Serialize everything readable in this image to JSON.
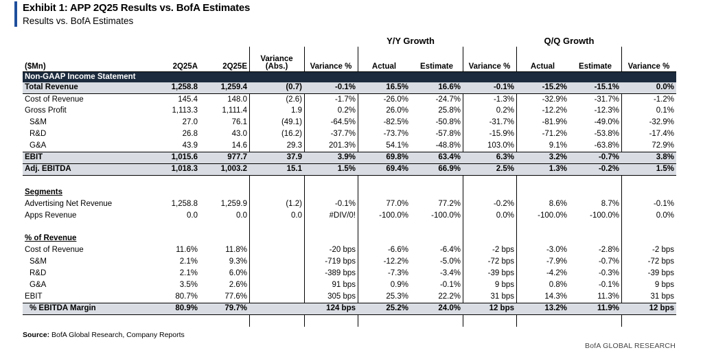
{
  "exhibit": {
    "title": "Exhibit 1: APP 2Q25 Results vs. BofA Estimates",
    "subtitle": "Results vs. BofA Estimates"
  },
  "groups": {
    "yy": "Y/Y Growth",
    "qq": "Q/Q Growth"
  },
  "columns": [
    "($Mn)",
    "2Q25A",
    "2Q25E",
    "Variance (Abs.)",
    "Variance %",
    "Actual",
    "Estimate",
    "Variance %",
    "Actual",
    "Estimate",
    "Variance %"
  ],
  "sections": {
    "income": "Non-GAAP Income Statement",
    "segments": "Segments",
    "pct_revenue": "% of Revenue"
  },
  "rows": [
    {
      "label": "Total Revenue",
      "cells": [
        "1,258.8",
        "1,259.4",
        "(0.7)",
        "-0.1%",
        "16.5%",
        "16.6%",
        "-0.1%",
        "-15.2%",
        "-15.1%",
        "0.0%"
      ]
    },
    {
      "label": "Cost of Revenue",
      "cells": [
        "145.4",
        "148.0",
        "(2.6)",
        "-1.7%",
        "-26.0%",
        "-24.7%",
        "-1.3%",
        "-32.9%",
        "-31.7%",
        "-1.2%"
      ]
    },
    {
      "label": "Gross Profit",
      "cells": [
        "1,113.3",
        "1,111.4",
        "1.9",
        "0.2%",
        "26.0%",
        "25.8%",
        "0.2%",
        "-12.2%",
        "-12.3%",
        "0.1%"
      ]
    },
    {
      "label": "S&M",
      "cells": [
        "27.0",
        "76.1",
        "(49.1)",
        "-64.5%",
        "-82.5%",
        "-50.8%",
        "-31.7%",
        "-81.9%",
        "-49.0%",
        "-32.9%"
      ]
    },
    {
      "label": "R&D",
      "cells": [
        "26.8",
        "43.0",
        "(16.2)",
        "-37.7%",
        "-73.7%",
        "-57.8%",
        "-15.9%",
        "-71.2%",
        "-53.8%",
        "-17.4%"
      ]
    },
    {
      "label": "G&A",
      "cells": [
        "43.9",
        "14.6",
        "29.3",
        "201.3%",
        "54.1%",
        "-48.8%",
        "103.0%",
        "9.1%",
        "-63.8%",
        "72.9%"
      ]
    },
    {
      "label": "EBIT",
      "cells": [
        "1,015.6",
        "977.7",
        "37.9",
        "3.9%",
        "69.8%",
        "63.4%",
        "6.3%",
        "3.2%",
        "-0.7%",
        "3.8%"
      ]
    },
    {
      "label": "Adj. EBITDA",
      "cells": [
        "1,018.3",
        "1,003.2",
        "15.1",
        "1.5%",
        "69.4%",
        "66.9%",
        "2.5%",
        "1.3%",
        "-0.2%",
        "1.5%"
      ]
    },
    {
      "label": "Advertising Net Revenue",
      "cells": [
        "1,258.8",
        "1,259.9",
        "(1.2)",
        "-0.1%",
        "77.0%",
        "77.2%",
        "-0.2%",
        "8.6%",
        "8.7%",
        "-0.1%"
      ]
    },
    {
      "label": "Apps Revenue",
      "cells": [
        "0.0",
        "0.0",
        "0.0",
        "#DIV/0!",
        "-100.0%",
        "-100.0%",
        "0.0%",
        "-100.0%",
        "-100.0%",
        "0.0%"
      ]
    },
    {
      "label": "Cost of Revenue",
      "cells": [
        "11.6%",
        "11.8%",
        "",
        "-20 bps",
        "-6.6%",
        "-6.4%",
        "-2 bps",
        "-3.0%",
        "-2.8%",
        "-2 bps"
      ]
    },
    {
      "label": "S&M",
      "cells": [
        "2.1%",
        "9.3%",
        "",
        "-719 bps",
        "-12.2%",
        "-5.0%",
        "-72 bps",
        "-7.9%",
        "-0.7%",
        "-72 bps"
      ]
    },
    {
      "label": "R&D",
      "cells": [
        "2.1%",
        "6.0%",
        "",
        "-389 bps",
        "-7.3%",
        "-3.4%",
        "-39 bps",
        "-4.2%",
        "-0.3%",
        "-39 bps"
      ]
    },
    {
      "label": "G&A",
      "cells": [
        "3.5%",
        "2.6%",
        "",
        "91 bps",
        "0.9%",
        "-0.1%",
        "9 bps",
        "0.8%",
        "-0.1%",
        "9 bps"
      ]
    },
    {
      "label": "EBIT",
      "cells": [
        "80.7%",
        "77.6%",
        "",
        "305 bps",
        "25.3%",
        "22.2%",
        "31 bps",
        "14.3%",
        "11.3%",
        "31 bps"
      ]
    },
    {
      "label": "% EBITDA Margin",
      "cells": [
        "80.9%",
        "79.7%",
        "",
        "124 bps",
        "25.2%",
        "24.0%",
        "12 bps",
        "13.2%",
        "11.9%",
        "12 bps"
      ]
    }
  ],
  "source": {
    "label": "Source:",
    "text": " BofA Global Research, Company Reports"
  },
  "brand": "BofA GLOBAL RESEARCH"
}
